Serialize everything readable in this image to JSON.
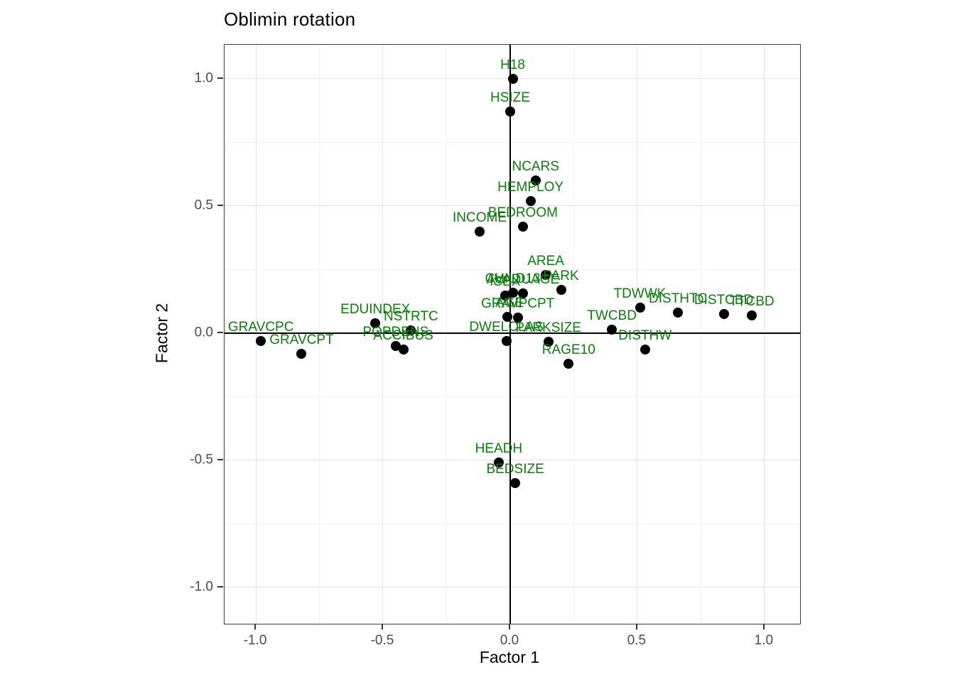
{
  "title": "Oblimin rotation",
  "axes": {
    "x": {
      "label": "Factor 1",
      "tick_labels": [
        "-1.0",
        "-0.5",
        "0.0",
        "0.5",
        "1.0"
      ],
      "tick_values": [
        -1.0,
        -0.5,
        0.0,
        0.5,
        1.0
      ],
      "minor_tick_values": [
        -0.75,
        -0.25,
        0.25,
        0.75
      ],
      "range": [
        -1.123,
        1.14
      ]
    },
    "y": {
      "label": "Factor 2",
      "tick_labels": [
        "-1.0",
        "-0.5",
        "0.0",
        "0.5",
        "1.0"
      ],
      "tick_values": [
        -1.0,
        -0.5,
        0.0,
        0.5,
        1.0
      ],
      "minor_tick_values": [
        -0.75,
        -0.25,
        0.25,
        0.75
      ],
      "range": [
        -1.143,
        1.134
      ]
    }
  },
  "colors": {
    "label_green": "#0c7c0c",
    "point_black": "#000000",
    "axis_text": "#4a4a4a",
    "grid_major": "#e3e3e3",
    "grid_minor": "#f1f1f1",
    "panel_border": "#3c3c3c",
    "crosshair": "#000000",
    "background": "#ffffff"
  },
  "chart_data": {
    "type": "scatter",
    "title": "Oblimin rotation",
    "xlabel": "Factor 1",
    "ylabel": "Factor 2",
    "xlim": [
      -1.123,
      1.14
    ],
    "ylim": [
      -1.143,
      1.134
    ],
    "grid": true,
    "legend": "none",
    "reference_lines": {
      "vline_x": 0,
      "hline_y": 0
    },
    "points": [
      {
        "label": "H18",
        "x": 0.01,
        "y": 1.0
      },
      {
        "label": "HSIZE",
        "x": 0.0,
        "y": 0.87
      },
      {
        "label": "NCARS",
        "x": 0.1,
        "y": 0.6
      },
      {
        "label": "HEMPLOY",
        "x": 0.08,
        "y": 0.52
      },
      {
        "label": "BEDROOM",
        "x": 0.05,
        "y": 0.42
      },
      {
        "label": "INCOME",
        "x": -0.12,
        "y": 0.4
      },
      {
        "label": "AREA",
        "x": 0.14,
        "y": 0.23
      },
      {
        "label": "PARK",
        "x": 0.2,
        "y": 0.17
      },
      {
        "label": "CHILD13",
        "x": 0.01,
        "y": 0.16
      },
      {
        "label": "ISEX",
        "x": -0.02,
        "y": 0.148
      },
      {
        "label": "AVADUAGE",
        "x": 0.05,
        "y": 0.155
      },
      {
        "label": "IAGE",
        "x": -0.01,
        "y": 0.065
      },
      {
        "label": "GRAVPCPT",
        "x": 0.03,
        "y": 0.062
      },
      {
        "label": "DWELCLAS",
        "x": -0.015,
        "y": -0.03
      },
      {
        "label": "PARKSIZE",
        "x": 0.15,
        "y": -0.035
      },
      {
        "label": "RAGE10",
        "x": 0.23,
        "y": -0.12
      },
      {
        "label": "TWCBD",
        "x": 0.4,
        "y": 0.015
      },
      {
        "label": "TDWWK",
        "x": 0.51,
        "y": 0.1
      },
      {
        "label": "DISTHTC",
        "x": 0.66,
        "y": 0.08
      },
      {
        "label": "DISTCBD",
        "x": 0.84,
        "y": 0.075
      },
      {
        "label": "TTCBD",
        "x": 0.95,
        "y": 0.07
      },
      {
        "label": "DISTHW",
        "x": 0.53,
        "y": -0.065
      },
      {
        "label": "EDUINDEX",
        "x": -0.53,
        "y": 0.04
      },
      {
        "label": "NSTRTC",
        "x": -0.39,
        "y": 0.01
      },
      {
        "label": "POPDENS",
        "x": -0.45,
        "y": -0.05
      },
      {
        "label": "ACCIBUS",
        "x": -0.42,
        "y": -0.065
      },
      {
        "label": "GRAVCPC",
        "x": -0.98,
        "y": -0.03
      },
      {
        "label": "GRAVCPT",
        "x": -0.82,
        "y": -0.08
      },
      {
        "label": "HEADH",
        "x": -0.045,
        "y": -0.51
      },
      {
        "label": "BEDSIZE",
        "x": 0.02,
        "y": -0.59
      }
    ]
  }
}
